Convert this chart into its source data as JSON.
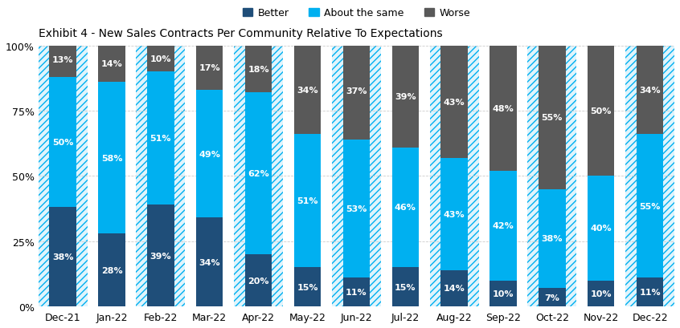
{
  "title": "Exhibit 4 - New Sales Contracts Per Community Relative To Expectations",
  "categories": [
    "Dec-21",
    "Jan-22",
    "Feb-22",
    "Mar-22",
    "Apr-22",
    "May-22",
    "Jun-22",
    "Jul-22",
    "Aug-22",
    "Sep-22",
    "Oct-22",
    "Nov-22",
    "Dec-22"
  ],
  "better": [
    38,
    28,
    39,
    34,
    20,
    15,
    11,
    15,
    14,
    10,
    7,
    10,
    11
  ],
  "about_same": [
    50,
    58,
    51,
    49,
    62,
    51,
    53,
    46,
    43,
    42,
    38,
    40,
    55
  ],
  "worse": [
    13,
    14,
    10,
    17,
    18,
    34,
    37,
    39,
    43,
    48,
    55,
    50,
    34
  ],
  "color_better": "#1F4E79",
  "color_about_same": "#00B0F0",
  "color_worse": "#595959",
  "hatch_bg_color": "#00B0F0",
  "hatch_pattern": "////",
  "background_color": "#ffffff",
  "ylabel_ticks": [
    "0%",
    "25%",
    "50%",
    "75%",
    "100%"
  ],
  "yticks": [
    0,
    25,
    50,
    75,
    100
  ],
  "legend_labels": [
    "Better",
    "About the same",
    "Worse"
  ],
  "title_fontsize": 10,
  "label_fontsize": 8,
  "tick_fontsize": 9,
  "bar_width": 0.55,
  "col_hatch_indices": [
    0,
    2,
    4,
    6,
    8,
    10,
    12
  ]
}
